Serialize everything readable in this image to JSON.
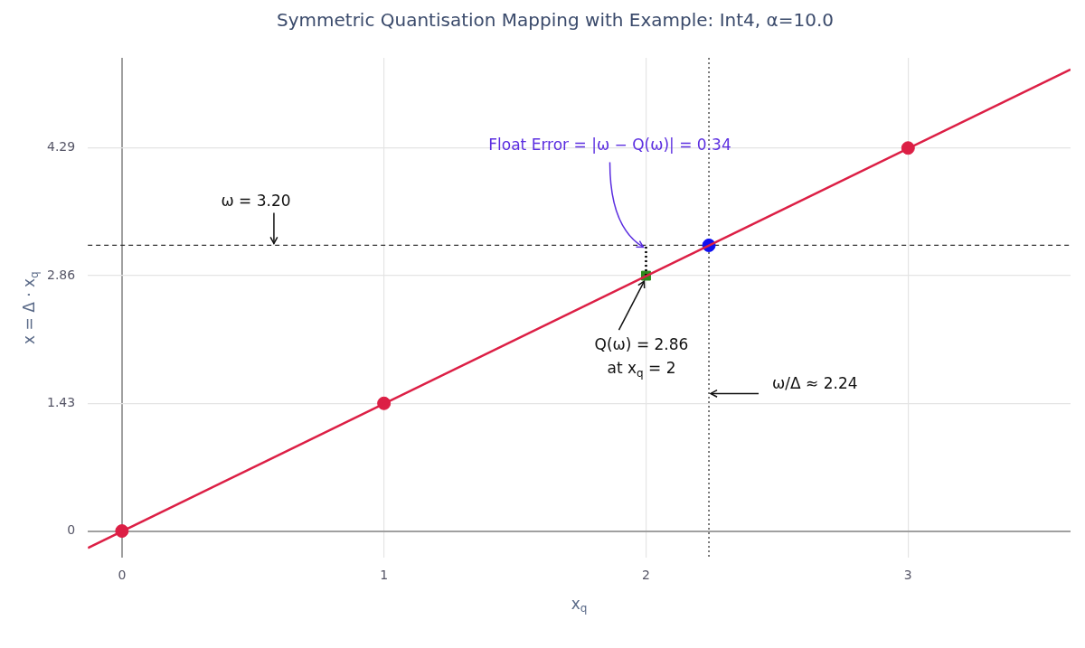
{
  "chart_data": {
    "type": "line",
    "title": "Symmetric Quantisation Mapping with Example: Int4, α=10.0",
    "xlabel": "x$_{q}$",
    "ylabel": "x = Δ · x$_{q}$",
    "xlim": [
      -0.13,
      3.62
    ],
    "ylim": [
      -0.3,
      5.3
    ],
    "xticks": [
      0,
      1,
      2,
      3
    ],
    "yticks": [
      0,
      1.43,
      2.86,
      4.29
    ],
    "grid": true,
    "legend": false,
    "series": [
      {
        "color": "#dc1f45",
        "x": [
          -0.13,
          3.62
        ],
        "values": [
          -0.19,
          5.17
        ],
        "marker": "none",
        "line_style": "solid"
      },
      {
        "type": "line",
        "color": "#000000",
        "x": [
          2,
          2
        ],
        "values": [
          2.86,
          3.2
        ],
        "marker": "none",
        "line_style": "dotted"
      },
      {
        "type": "scatter",
        "color": "#dc1f45",
        "x": [
          0,
          1,
          3
        ],
        "values": [
          0,
          1.43,
          4.29
        ],
        "marker": "circle"
      },
      {
        "type": "scatter",
        "color": "#2e8b1e",
        "x": [
          2
        ],
        "values": [
          2.86
        ],
        "marker": "square"
      },
      {
        "type": "scatter",
        "color": "#1010f0",
        "x": [
          2.24
        ],
        "values": [
          3.2
        ],
        "marker": "circle"
      }
    ],
    "ref_lines": [
      {
        "axis": "y",
        "value": 3.2,
        "color": "#333333",
        "line_style": "dashed"
      },
      {
        "axis": "x",
        "value": 2.24,
        "color": "#333333",
        "line_style": "dotted"
      }
    ],
    "annotations": [
      {
        "text": "ω = 3.20",
        "x": 0.58,
        "y": 3.2
      },
      {
        "text": "Float Error = |ω − Q(ω)| = 0.34",
        "x": 2,
        "y": 3.2
      },
      {
        "text": "Q(ω) = 2.86\nat x$_{q}$ = 2",
        "x": 2,
        "y": 2.86
      },
      {
        "text": "ω/Δ ≈ 2.24",
        "x": 2.24,
        "y": 1.54
      }
    ]
  }
}
